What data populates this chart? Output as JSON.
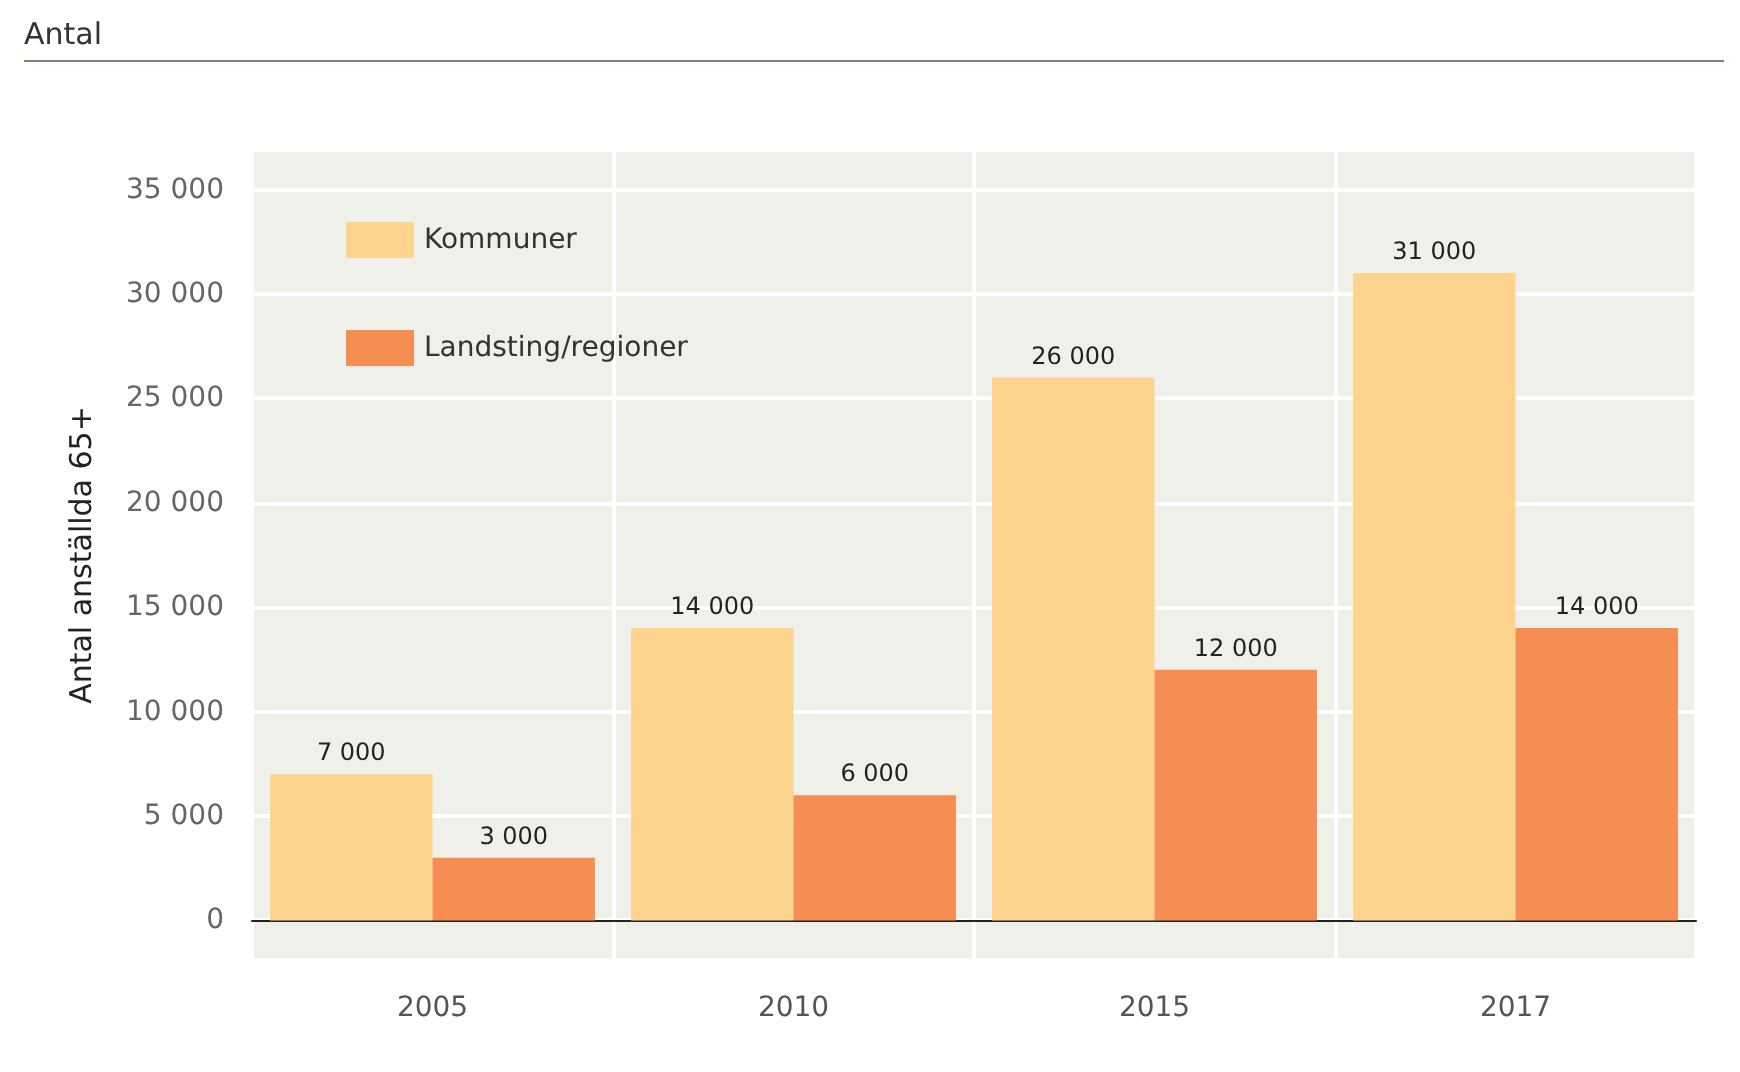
{
  "chart_data": {
    "type": "bar",
    "subtitle": "Antal",
    "ylabel": "Antal anställda 65+",
    "categories": [
      "2005",
      "2010",
      "2015",
      "2017"
    ],
    "series": [
      {
        "name": "Kommuner",
        "color": "#fcd48e",
        "values": [
          7000,
          14000,
          26000,
          31000
        ],
        "value_labels": [
          "7 000",
          "14 000",
          "26 000",
          "31 000"
        ]
      },
      {
        "name": "Landsting/regioner",
        "color": "#f68e54",
        "values": [
          3000,
          6000,
          12000,
          14000
        ],
        "value_labels": [
          "3 000",
          "6 000",
          "12 000",
          "14 000"
        ]
      }
    ],
    "ylim": [
      -1800,
      36800
    ],
    "yticks": [
      {
        "value": 0,
        "label": "0"
      },
      {
        "value": 5000,
        "label": "5 000"
      },
      {
        "value": 10000,
        "label": "10 000"
      },
      {
        "value": 15000,
        "label": "15 000"
      },
      {
        "value": 20000,
        "label": "20 000"
      },
      {
        "value": 25000,
        "label": "25 000"
      },
      {
        "value": 30000,
        "label": "30 000"
      },
      {
        "value": 35000,
        "label": "35 000"
      }
    ],
    "grid": true,
    "legend": "top left"
  }
}
